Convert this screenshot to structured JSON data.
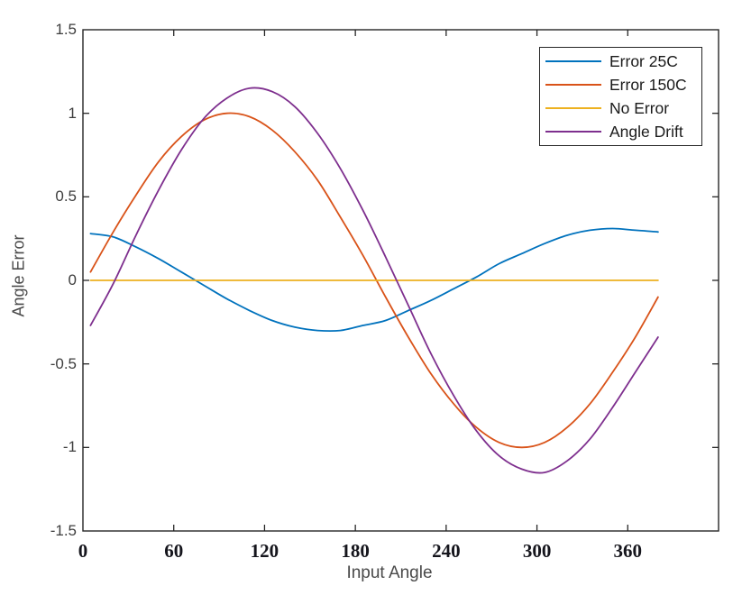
{
  "chart_data": {
    "type": "line",
    "title": "",
    "xlabel": "Input Angle",
    "ylabel": "Angle Error",
    "xlim": [
      0,
      420
    ],
    "ylim": [
      -1.5,
      1.5
    ],
    "xticks": [
      0,
      60,
      120,
      180,
      240,
      300,
      360
    ],
    "yticks": [
      -1.5,
      -1,
      -0.5,
      0,
      0.5,
      1,
      1.5
    ],
    "grid": false,
    "legend_position": "top-right",
    "axis_box_color": "#262626",
    "x": [
      5,
      20,
      35,
      50,
      65,
      80,
      95,
      110,
      125,
      140,
      155,
      170,
      185,
      200,
      215,
      230,
      245,
      260,
      275,
      290,
      305,
      320,
      335,
      350,
      365,
      380
    ],
    "series": [
      {
        "name": "Error 25C",
        "slug": "error-25c",
        "color": "#0072BD",
        "values": [
          0.28,
          0.26,
          0.2,
          0.13,
          0.05,
          -0.03,
          -0.11,
          -0.18,
          -0.24,
          -0.28,
          -0.3,
          -0.3,
          -0.27,
          -0.24,
          -0.18,
          -0.12,
          -0.05,
          0.02,
          0.1,
          0.16,
          0.22,
          0.27,
          0.3,
          0.31,
          0.3,
          0.29
        ]
      },
      {
        "name": "Error 150C",
        "slug": "error-150c",
        "color": "#D95319",
        "values": [
          0.05,
          0.29,
          0.51,
          0.71,
          0.86,
          0.96,
          1.0,
          0.98,
          0.9,
          0.77,
          0.6,
          0.38,
          0.15,
          -0.1,
          -0.34,
          -0.56,
          -0.74,
          -0.88,
          -0.97,
          -1.0,
          -0.97,
          -0.88,
          -0.74,
          -0.55,
          -0.34,
          -0.1
        ]
      },
      {
        "name": "No Error",
        "slug": "no-error",
        "color": "#EDB120",
        "values": [
          0,
          0,
          0,
          0,
          0,
          0,
          0,
          0,
          0,
          0,
          0,
          0,
          0,
          0,
          0,
          0,
          0,
          0,
          0,
          0,
          0,
          0,
          0,
          0,
          0,
          0
        ]
      },
      {
        "name": "Angle Drift",
        "slug": "angle-drift",
        "color": "#7E2F8E",
        "values": [
          -0.27,
          -0.02,
          0.27,
          0.54,
          0.78,
          0.97,
          1.09,
          1.15,
          1.13,
          1.04,
          0.88,
          0.67,
          0.42,
          0.14,
          -0.15,
          -0.44,
          -0.69,
          -0.9,
          -1.05,
          -1.13,
          -1.15,
          -1.08,
          -0.95,
          -0.76,
          -0.55,
          -0.34
        ]
      }
    ]
  }
}
